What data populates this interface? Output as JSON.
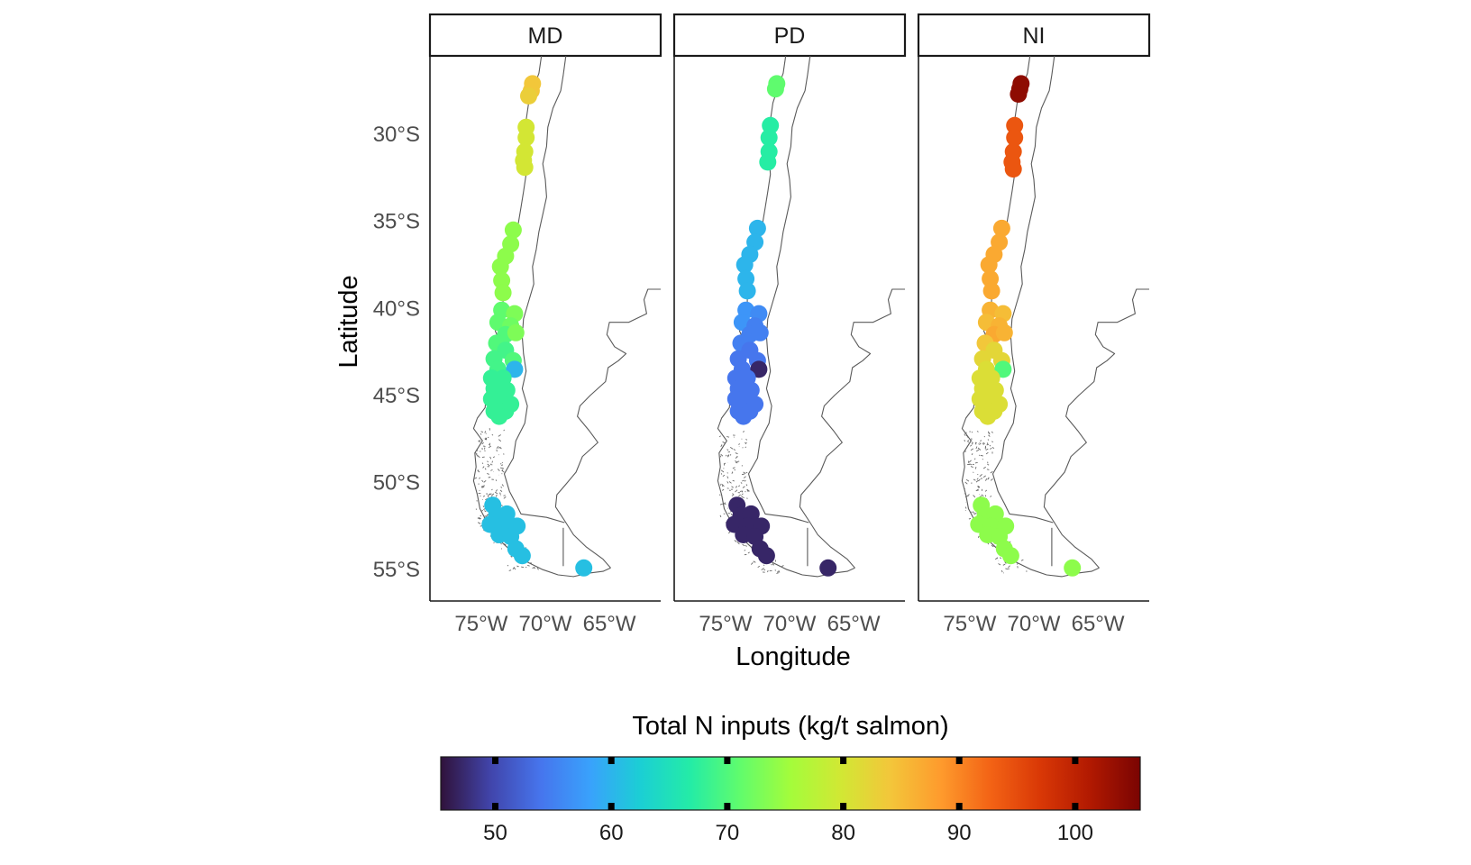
{
  "figure": {
    "x_axis_title": "Longitude",
    "y_axis_title": "Latitude",
    "lat_ticks": [
      {
        "value": -30,
        "label": "30°S"
      },
      {
        "value": -35,
        "label": "35°S"
      },
      {
        "value": -40,
        "label": "40°S"
      },
      {
        "value": -45,
        "label": "45°S"
      },
      {
        "value": -50,
        "label": "50°S"
      },
      {
        "value": -55,
        "label": "55°S"
      }
    ],
    "lon_ticks": [
      {
        "value": -75,
        "label": "75°W"
      },
      {
        "value": -70,
        "label": "70°W"
      },
      {
        "value": -65,
        "label": "65°W"
      }
    ],
    "lon_range": [
      -79,
      -61
    ],
    "lat_range": [
      -56.8,
      -25.5
    ]
  },
  "chart_data": {
    "type": "scatter",
    "layout": "facets, one row",
    "xlabel": "Longitude",
    "ylabel": "Latitude",
    "xlim": [
      -79,
      -61
    ],
    "ylim": [
      -56.8,
      -25.5
    ],
    "facets": [
      {
        "name": "MD",
        "points": [
          {
            "lon": -71.0,
            "lat": -27.1,
            "value": 84
          },
          {
            "lon": -71.1,
            "lat": -27.5,
            "value": 84
          },
          {
            "lon": -71.3,
            "lat": -27.8,
            "value": 83
          },
          {
            "lon": -71.5,
            "lat": -29.6,
            "value": 80
          },
          {
            "lon": -71.5,
            "lat": -30.2,
            "value": 80
          },
          {
            "lon": -71.6,
            "lat": -31.0,
            "value": 80
          },
          {
            "lon": -71.7,
            "lat": -31.5,
            "value": 80
          },
          {
            "lon": -71.6,
            "lat": -31.9,
            "value": 80
          },
          {
            "lon": -72.5,
            "lat": -35.5,
            "value": 74
          },
          {
            "lon": -72.7,
            "lat": -36.3,
            "value": 74
          },
          {
            "lon": -73.1,
            "lat": -37.0,
            "value": 74
          },
          {
            "lon": -73.5,
            "lat": -37.6,
            "value": 74
          },
          {
            "lon": -73.4,
            "lat": -38.4,
            "value": 74
          },
          {
            "lon": -73.3,
            "lat": -39.1,
            "value": 74
          },
          {
            "lon": -73.4,
            "lat": -40.1,
            "value": 71
          },
          {
            "lon": -72.4,
            "lat": -40.3,
            "value": 73
          },
          {
            "lon": -73.7,
            "lat": -40.8,
            "value": 71
          },
          {
            "lon": -72.7,
            "lat": -41.0,
            "value": 72
          },
          {
            "lon": -73.1,
            "lat": -41.5,
            "value": 70
          },
          {
            "lon": -72.3,
            "lat": -41.4,
            "value": 73
          },
          {
            "lon": -73.8,
            "lat": -42.0,
            "value": 70
          },
          {
            "lon": -73.1,
            "lat": -42.4,
            "value": 69
          },
          {
            "lon": -74.0,
            "lat": -42.9,
            "value": 69
          },
          {
            "lon": -72.5,
            "lat": -43.0,
            "value": 70
          },
          {
            "lon": -73.7,
            "lat": -43.5,
            "value": 69
          },
          {
            "lon": -72.4,
            "lat": -43.5,
            "value": 60
          },
          {
            "lon": -74.2,
            "lat": -44.0,
            "value": 68
          },
          {
            "lon": -73.3,
            "lat": -44.0,
            "value": 68
          },
          {
            "lon": -74.0,
            "lat": -44.6,
            "value": 68
          },
          {
            "lon": -73.0,
            "lat": -44.7,
            "value": 68
          },
          {
            "lon": -74.2,
            "lat": -45.2,
            "value": 68
          },
          {
            "lon": -73.4,
            "lat": -45.3,
            "value": 68
          },
          {
            "lon": -72.7,
            "lat": -45.5,
            "value": 68
          },
          {
            "lon": -74.0,
            "lat": -45.9,
            "value": 68
          },
          {
            "lon": -73.1,
            "lat": -45.9,
            "value": 68
          },
          {
            "lon": -73.6,
            "lat": -46.2,
            "value": 68
          },
          {
            "lon": -74.1,
            "lat": -51.3,
            "value": 61
          },
          {
            "lon": -73.8,
            "lat": -51.9,
            "value": 61
          },
          {
            "lon": -73.0,
            "lat": -51.8,
            "value": 61
          },
          {
            "lon": -74.3,
            "lat": -52.4,
            "value": 61
          },
          {
            "lon": -73.3,
            "lat": -52.5,
            "value": 61
          },
          {
            "lon": -72.2,
            "lat": -52.5,
            "value": 61
          },
          {
            "lon": -73.6,
            "lat": -53.0,
            "value": 61
          },
          {
            "lon": -72.7,
            "lat": -53.1,
            "value": 61
          },
          {
            "lon": -72.3,
            "lat": -53.8,
            "value": 61
          },
          {
            "lon": -71.8,
            "lat": -54.2,
            "value": 61
          },
          {
            "lon": -67.0,
            "lat": -54.9,
            "value": 61
          }
        ]
      },
      {
        "name": "PD",
        "points": [
          {
            "lon": -71.0,
            "lat": -27.1,
            "value": 71
          },
          {
            "lon": -71.1,
            "lat": -27.4,
            "value": 71
          },
          {
            "lon": -71.5,
            "lat": -29.5,
            "value": 67
          },
          {
            "lon": -71.6,
            "lat": -30.2,
            "value": 67
          },
          {
            "lon": -71.6,
            "lat": -31.0,
            "value": 67
          },
          {
            "lon": -71.7,
            "lat": -31.6,
            "value": 67
          },
          {
            "lon": -72.5,
            "lat": -35.4,
            "value": 60
          },
          {
            "lon": -72.7,
            "lat": -36.2,
            "value": 60
          },
          {
            "lon": -73.1,
            "lat": -36.9,
            "value": 60
          },
          {
            "lon": -73.5,
            "lat": -37.5,
            "value": 60
          },
          {
            "lon": -73.4,
            "lat": -38.3,
            "value": 60
          },
          {
            "lon": -73.3,
            "lat": -39.0,
            "value": 60
          },
          {
            "lon": -73.4,
            "lat": -40.1,
            "value": 57
          },
          {
            "lon": -72.4,
            "lat": -40.3,
            "value": 56
          },
          {
            "lon": -73.7,
            "lat": -40.8,
            "value": 57
          },
          {
            "lon": -72.7,
            "lat": -41.0,
            "value": 55
          },
          {
            "lon": -73.1,
            "lat": -41.5,
            "value": 55
          },
          {
            "lon": -72.3,
            "lat": -41.4,
            "value": 55
          },
          {
            "lon": -73.8,
            "lat": -42.0,
            "value": 55
          },
          {
            "lon": -73.1,
            "lat": -42.4,
            "value": 54
          },
          {
            "lon": -74.0,
            "lat": -42.9,
            "value": 54
          },
          {
            "lon": -72.5,
            "lat": -43.0,
            "value": 54
          },
          {
            "lon": -73.7,
            "lat": -43.5,
            "value": 54
          },
          {
            "lon": -72.4,
            "lat": -43.5,
            "value": 47
          },
          {
            "lon": -74.2,
            "lat": -44.0,
            "value": 54
          },
          {
            "lon": -73.3,
            "lat": -44.0,
            "value": 54
          },
          {
            "lon": -74.0,
            "lat": -44.6,
            "value": 54
          },
          {
            "lon": -73.0,
            "lat": -44.7,
            "value": 54
          },
          {
            "lon": -74.2,
            "lat": -45.2,
            "value": 54
          },
          {
            "lon": -73.4,
            "lat": -45.3,
            "value": 54
          },
          {
            "lon": -72.7,
            "lat": -45.5,
            "value": 54
          },
          {
            "lon": -74.0,
            "lat": -45.9,
            "value": 54
          },
          {
            "lon": -73.1,
            "lat": -45.9,
            "value": 54
          },
          {
            "lon": -73.6,
            "lat": -46.2,
            "value": 54
          },
          {
            "lon": -74.1,
            "lat": -51.3,
            "value": 47
          },
          {
            "lon": -73.8,
            "lat": -51.9,
            "value": 47
          },
          {
            "lon": -73.0,
            "lat": -51.8,
            "value": 47
          },
          {
            "lon": -74.3,
            "lat": -52.4,
            "value": 47
          },
          {
            "lon": -73.3,
            "lat": -52.5,
            "value": 47
          },
          {
            "lon": -72.2,
            "lat": -52.5,
            "value": 47
          },
          {
            "lon": -73.6,
            "lat": -53.0,
            "value": 47
          },
          {
            "lon": -72.7,
            "lat": -53.1,
            "value": 47
          },
          {
            "lon": -72.3,
            "lat": -53.8,
            "value": 47
          },
          {
            "lon": -71.8,
            "lat": -54.2,
            "value": 47
          },
          {
            "lon": -67.0,
            "lat": -54.9,
            "value": 47
          }
        ]
      },
      {
        "name": "NI",
        "points": [
          {
            "lon": -71.0,
            "lat": -27.1,
            "value": 104
          },
          {
            "lon": -71.1,
            "lat": -27.4,
            "value": 104
          },
          {
            "lon": -71.2,
            "lat": -27.7,
            "value": 104
          },
          {
            "lon": -71.5,
            "lat": -29.5,
            "value": 94
          },
          {
            "lon": -71.5,
            "lat": -30.2,
            "value": 94
          },
          {
            "lon": -71.6,
            "lat": -31.0,
            "value": 94
          },
          {
            "lon": -71.7,
            "lat": -31.6,
            "value": 94
          },
          {
            "lon": -71.6,
            "lat": -32.0,
            "value": 94
          },
          {
            "lon": -72.5,
            "lat": -35.4,
            "value": 87
          },
          {
            "lon": -72.7,
            "lat": -36.2,
            "value": 87
          },
          {
            "lon": -73.1,
            "lat": -36.9,
            "value": 87
          },
          {
            "lon": -73.5,
            "lat": -37.5,
            "value": 87
          },
          {
            "lon": -73.4,
            "lat": -38.3,
            "value": 87
          },
          {
            "lon": -73.3,
            "lat": -39.0,
            "value": 87
          },
          {
            "lon": -73.4,
            "lat": -40.1,
            "value": 86
          },
          {
            "lon": -72.4,
            "lat": -40.3,
            "value": 85
          },
          {
            "lon": -73.7,
            "lat": -40.8,
            "value": 85
          },
          {
            "lon": -72.7,
            "lat": -41.0,
            "value": 86
          },
          {
            "lon": -73.1,
            "lat": -41.5,
            "value": 87
          },
          {
            "lon": -72.3,
            "lat": -41.4,
            "value": 86
          },
          {
            "lon": -73.8,
            "lat": -42.0,
            "value": 84
          },
          {
            "lon": -73.1,
            "lat": -42.4,
            "value": 82
          },
          {
            "lon": -74.0,
            "lat": -42.9,
            "value": 82
          },
          {
            "lon": -72.5,
            "lat": -43.0,
            "value": 82
          },
          {
            "lon": -73.7,
            "lat": -43.5,
            "value": 81
          },
          {
            "lon": -72.4,
            "lat": -43.5,
            "value": 70
          },
          {
            "lon": -74.2,
            "lat": -44.0,
            "value": 81
          },
          {
            "lon": -73.3,
            "lat": -44.0,
            "value": 81
          },
          {
            "lon": -74.0,
            "lat": -44.6,
            "value": 81
          },
          {
            "lon": -73.0,
            "lat": -44.7,
            "value": 81
          },
          {
            "lon": -74.2,
            "lat": -45.2,
            "value": 81
          },
          {
            "lon": -73.4,
            "lat": -45.3,
            "value": 81
          },
          {
            "lon": -72.7,
            "lat": -45.5,
            "value": 81
          },
          {
            "lon": -74.0,
            "lat": -45.9,
            "value": 81
          },
          {
            "lon": -73.1,
            "lat": -45.9,
            "value": 81
          },
          {
            "lon": -73.6,
            "lat": -46.2,
            "value": 81
          },
          {
            "lon": -74.1,
            "lat": -51.3,
            "value": 74
          },
          {
            "lon": -73.8,
            "lat": -51.9,
            "value": 74
          },
          {
            "lon": -73.0,
            "lat": -51.8,
            "value": 74
          },
          {
            "lon": -74.3,
            "lat": -52.4,
            "value": 74
          },
          {
            "lon": -73.3,
            "lat": -52.5,
            "value": 74
          },
          {
            "lon": -72.2,
            "lat": -52.5,
            "value": 74
          },
          {
            "lon": -73.6,
            "lat": -53.0,
            "value": 74
          },
          {
            "lon": -72.7,
            "lat": -53.1,
            "value": 74
          },
          {
            "lon": -72.3,
            "lat": -53.8,
            "value": 74
          },
          {
            "lon": -71.8,
            "lat": -54.2,
            "value": 74
          },
          {
            "lon": -67.0,
            "lat": -54.9,
            "value": 74
          }
        ]
      }
    ],
    "legend": {
      "title": "Total N inputs (kg/t salmon)",
      "placement": "bottom",
      "type": "continuous colorbar",
      "range": [
        45.3,
        105.6
      ],
      "breaks": [
        50,
        60,
        70,
        80,
        90,
        100
      ],
      "palette": [
        "#30123b",
        "#4145ab",
        "#4675ed",
        "#39a2fc",
        "#1bcfd4",
        "#24eca6",
        "#61fc6c",
        "#a4fc3b",
        "#d1e834",
        "#f3c63a",
        "#fe9b2d",
        "#f36315",
        "#d93806",
        "#b11901",
        "#7a0402"
      ]
    }
  }
}
